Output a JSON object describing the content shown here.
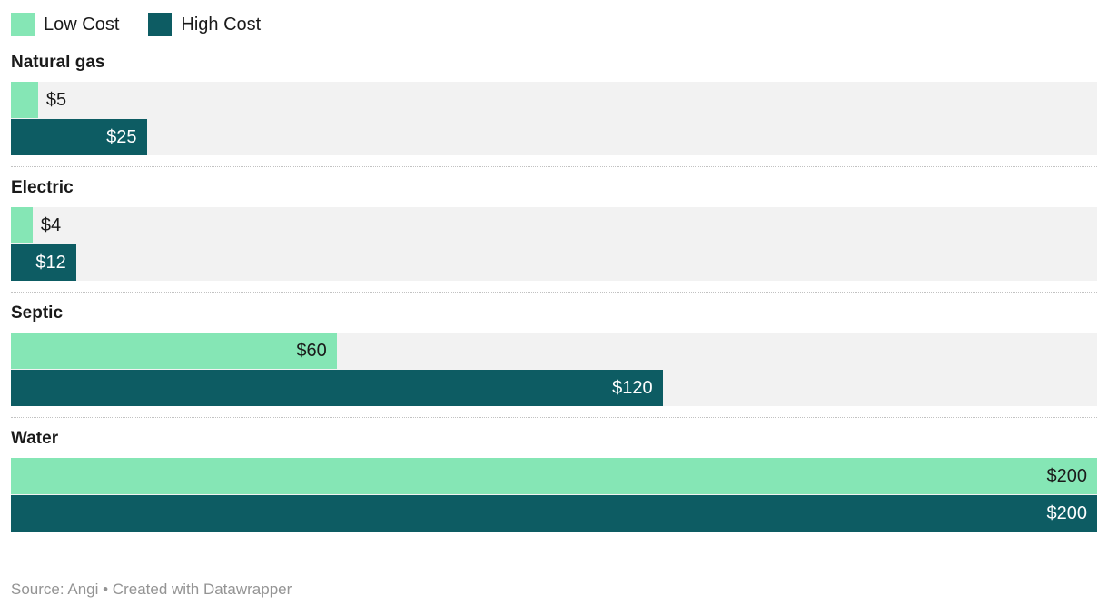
{
  "legend": {
    "items": [
      {
        "label": "Low Cost",
        "color": "#85e6b5"
      },
      {
        "label": "High Cost",
        "color": "#0d5c63"
      }
    ]
  },
  "chart_data": {
    "type": "bar",
    "orientation": "horizontal",
    "xmax": 200,
    "track_color": "#f2f2f2",
    "grid": false,
    "legend_position": "top-left",
    "series": [
      "Low Cost",
      "High Cost"
    ],
    "categories": [
      "Natural gas",
      "Electric",
      "Septic",
      "Water"
    ],
    "groups": [
      {
        "label": "Natural gas",
        "low": {
          "value": 5,
          "label": "$5",
          "inside": false
        },
        "high": {
          "value": 25,
          "label": "$25",
          "inside": true
        }
      },
      {
        "label": "Electric",
        "low": {
          "value": 4,
          "label": "$4",
          "inside": false
        },
        "high": {
          "value": 12,
          "label": "$12",
          "inside": true
        }
      },
      {
        "label": "Septic",
        "low": {
          "value": 60,
          "label": "$60",
          "inside": true
        },
        "high": {
          "value": 120,
          "label": "$120",
          "inside": true
        }
      },
      {
        "label": "Water",
        "low": {
          "value": 200,
          "label": "$200",
          "inside": true
        },
        "high": {
          "value": 200,
          "label": "$200",
          "inside": true
        }
      }
    ]
  },
  "footer": {
    "text": "Source: Angi • Created with Datawrapper"
  }
}
